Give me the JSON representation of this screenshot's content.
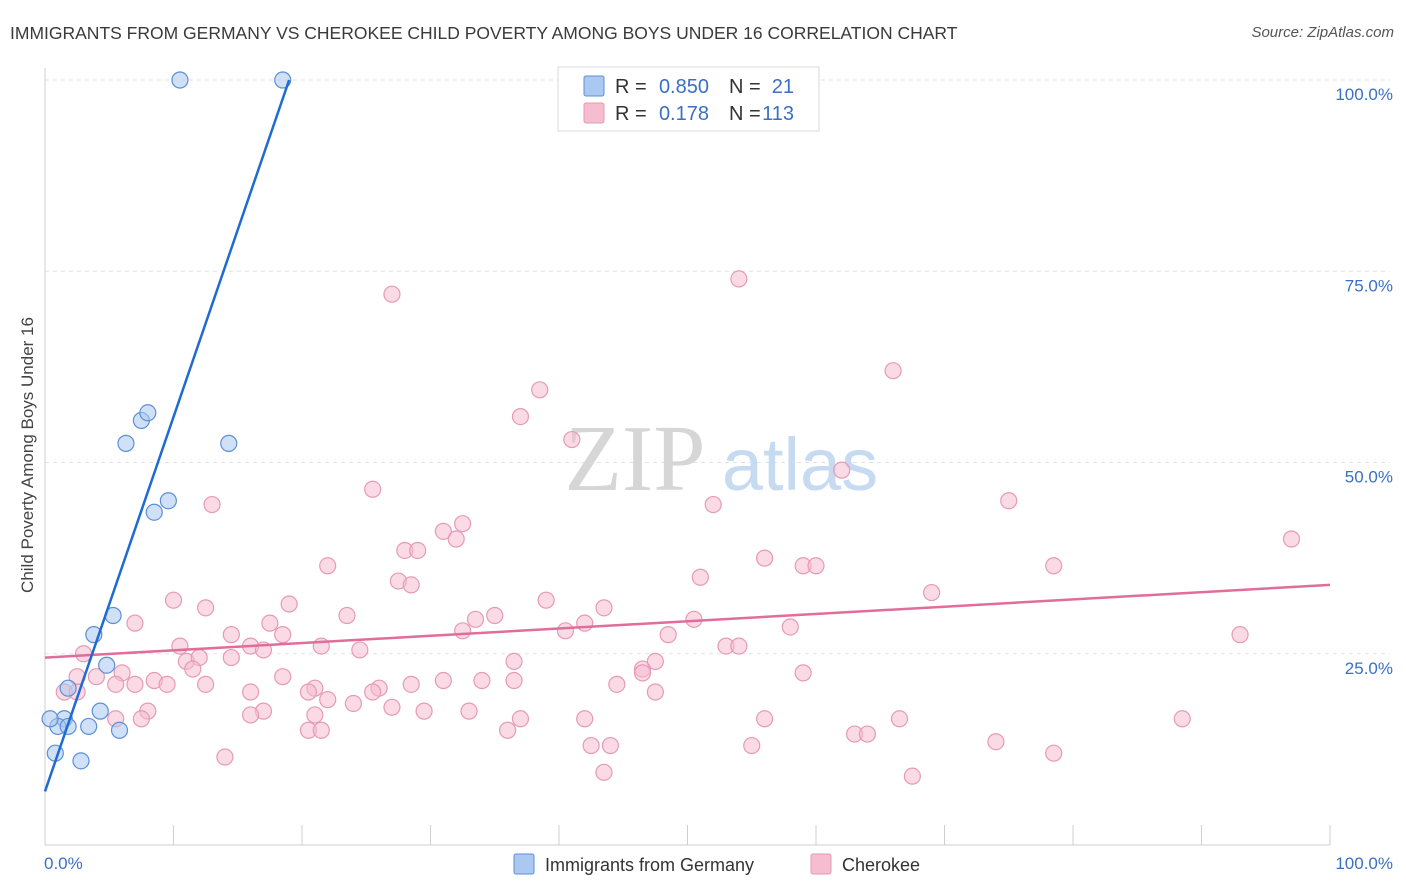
{
  "title": "IMMIGRANTS FROM GERMANY VS CHEROKEE CHILD POVERTY AMONG BOYS UNDER 16 CORRELATION CHART",
  "source": "Source: ZipAtlas.com",
  "watermark": {
    "zip": "ZIP",
    "atlas": "atlas"
  },
  "colors": {
    "blue_fill": "#aac8f0",
    "blue_stroke": "#5b8fd8",
    "blue_line": "#1f6bd1",
    "pink_fill": "#f6bcd0",
    "pink_stroke": "#e79ab6",
    "pink_line": "#e06d9a",
    "value_text": "#3a70c4",
    "grid": "#e2e2e2"
  },
  "legend": {
    "r_label": "R =",
    "n_label": "N =",
    "series": [
      {
        "r": "0.850",
        "n": "21"
      },
      {
        "r": "0.178",
        "n": "113"
      }
    ]
  },
  "bottom_legend": [
    "Immigrants from Germany",
    "Cherokee"
  ],
  "chart_data": {
    "type": "scatter",
    "xlabel": "",
    "ylabel": "Child Poverty Among Boys Under 16",
    "xlim": [
      0,
      100
    ],
    "ylim": [
      0,
      100
    ],
    "x_tick_labels": [
      "0.0%",
      "100.0%"
    ],
    "y_tick_labels": [
      "25.0%",
      "50.0%",
      "75.0%",
      "100.0%"
    ],
    "y_ticks": [
      25,
      50,
      75,
      100
    ],
    "grid": true,
    "legend_position": "top-center",
    "series": [
      {
        "name": "Immigrants from Germany",
        "color": "#aac8f0",
        "points": [
          [
            10.5,
            100.0
          ],
          [
            18.5,
            100.0
          ],
          [
            7.5,
            55.5
          ],
          [
            8.0,
            56.5
          ],
          [
            6.3,
            52.5
          ],
          [
            14.3,
            52.5
          ],
          [
            9.6,
            45.0
          ],
          [
            8.5,
            43.5
          ],
          [
            5.3,
            30.0
          ],
          [
            3.8,
            27.5
          ],
          [
            4.8,
            23.5
          ],
          [
            1.8,
            20.5
          ],
          [
            4.3,
            17.5
          ],
          [
            1.5,
            16.5
          ],
          [
            1.0,
            15.5
          ],
          [
            1.8,
            15.5
          ],
          [
            3.4,
            15.5
          ],
          [
            5.8,
            15.0
          ],
          [
            0.8,
            12.0
          ],
          [
            2.8,
            11.0
          ],
          [
            0.4,
            16.5
          ]
        ],
        "trend": {
          "x": [
            0,
            19
          ],
          "y": [
            7,
            100
          ]
        }
      },
      {
        "name": "Cherokee",
        "color": "#f6bcd0",
        "points": [
          [
            27,
            72
          ],
          [
            54,
            74
          ],
          [
            66,
            62
          ],
          [
            38.5,
            59.5
          ],
          [
            37,
            56
          ],
          [
            41,
            53
          ],
          [
            62,
            49
          ],
          [
            25.5,
            46.5
          ],
          [
            13,
            44.5
          ],
          [
            52,
            44.5
          ],
          [
            75,
            45
          ],
          [
            32.5,
            42
          ],
          [
            31,
            41
          ],
          [
            32,
            40
          ],
          [
            28,
            38.5
          ],
          [
            29,
            38.5
          ],
          [
            22,
            36.5
          ],
          [
            56,
            37.5
          ],
          [
            59,
            36.5
          ],
          [
            60,
            36.5
          ],
          [
            78.5,
            36.5
          ],
          [
            97,
            40
          ],
          [
            27.5,
            34.5
          ],
          [
            28.5,
            34
          ],
          [
            51,
            35
          ],
          [
            10,
            32
          ],
          [
            19,
            31.5
          ],
          [
            39,
            32
          ],
          [
            43.5,
            31
          ],
          [
            12.5,
            31
          ],
          [
            23.5,
            30
          ],
          [
            35,
            30
          ],
          [
            33.5,
            29.5
          ],
          [
            50.5,
            29.5
          ],
          [
            17.5,
            29
          ],
          [
            42,
            29
          ],
          [
            40.5,
            28
          ],
          [
            32.5,
            28
          ],
          [
            14.5,
            27.5
          ],
          [
            18.5,
            27.5
          ],
          [
            69,
            33
          ],
          [
            3,
            25
          ],
          [
            7,
            29
          ],
          [
            10.5,
            26
          ],
          [
            16,
            26
          ],
          [
            17,
            25.5
          ],
          [
            21.5,
            26
          ],
          [
            24.5,
            25.5
          ],
          [
            48.5,
            27.5
          ],
          [
            53,
            26
          ],
          [
            54,
            26
          ],
          [
            58,
            28.5
          ],
          [
            11,
            24
          ],
          [
            12,
            24.5
          ],
          [
            14.5,
            24.5
          ],
          [
            11.5,
            23
          ],
          [
            36.5,
            24
          ],
          [
            46.5,
            23
          ],
          [
            4,
            22
          ],
          [
            6,
            22.5
          ],
          [
            2.5,
            22
          ],
          [
            8.5,
            21.5
          ],
          [
            9.5,
            21
          ],
          [
            5.5,
            21
          ],
          [
            7,
            21
          ],
          [
            12.5,
            21
          ],
          [
            18.5,
            22
          ],
          [
            21,
            20.5
          ],
          [
            20.5,
            20
          ],
          [
            22,
            19
          ],
          [
            26,
            20.5
          ],
          [
            28.5,
            21
          ],
          [
            31,
            21.5
          ],
          [
            34,
            21.5
          ],
          [
            36.5,
            21.5
          ],
          [
            44.5,
            21
          ],
          [
            46.5,
            22.5
          ],
          [
            47.5,
            20
          ],
          [
            1.5,
            20
          ],
          [
            2.5,
            20
          ],
          [
            16,
            20
          ],
          [
            24,
            18.5
          ],
          [
            25.5,
            20
          ],
          [
            33,
            17.5
          ],
          [
            37,
            16.5
          ],
          [
            47.5,
            24
          ],
          [
            59,
            22.5
          ],
          [
            66.5,
            16.5
          ],
          [
            21,
            17
          ],
          [
            27,
            18
          ],
          [
            29.5,
            17.5
          ],
          [
            8,
            17.5
          ],
          [
            17,
            17.5
          ],
          [
            16,
            17
          ],
          [
            5.5,
            16.5
          ],
          [
            7.5,
            16.5
          ],
          [
            20.5,
            15
          ],
          [
            21.5,
            15
          ],
          [
            36,
            15
          ],
          [
            42,
            16.5
          ],
          [
            56,
            16.5
          ],
          [
            63,
            14.5
          ],
          [
            64,
            14.5
          ],
          [
            74,
            13.5
          ],
          [
            78.5,
            12
          ],
          [
            88.5,
            16.5
          ],
          [
            42.5,
            13
          ],
          [
            44,
            13
          ],
          [
            55,
            13
          ],
          [
            14,
            11.5
          ],
          [
            43.5,
            9.5
          ],
          [
            67.5,
            9
          ],
          [
            93,
            27.5
          ]
        ],
        "trend": {
          "x": [
            0,
            100
          ],
          "y": [
            24.5,
            34
          ]
        }
      }
    ]
  }
}
